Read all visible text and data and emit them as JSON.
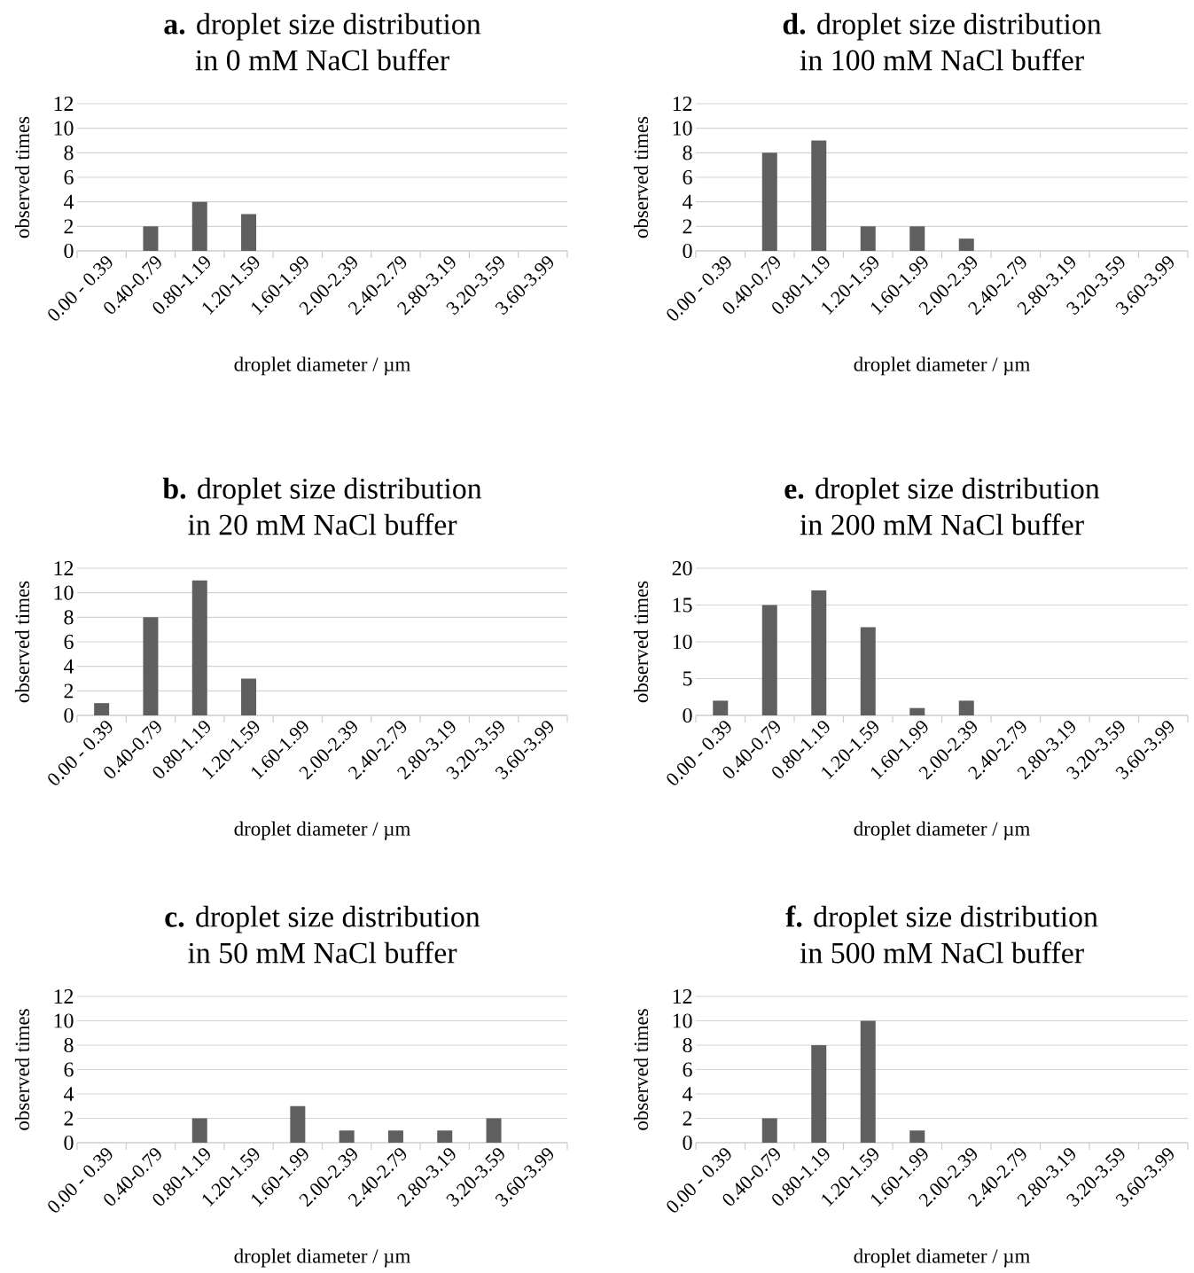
{
  "chart_data": [
    {
      "type": "bar",
      "title": "**a.** droplet size distribution",
      "subtitle": "in 0 mM NaCl buffer",
      "xlabel": "droplet diameter / µm",
      "ylabel": "observed times",
      "categories": [
        "0.00 - 0.39",
        "0.40-0.79",
        "0.80-1.19",
        "1.20-1.59",
        "1.60-1.99",
        "2.00-2.39",
        "2.40-2.79",
        "2.80-3.19",
        "3.20-3.59",
        "3.60-3.99"
      ],
      "values": [
        0,
        2,
        4,
        3,
        0,
        0,
        0,
        0,
        0,
        0
      ],
      "color": "#5f5f5f",
      "ylim": [
        0,
        12
      ],
      "yticks": [
        0,
        2,
        4,
        6,
        8,
        10,
        12
      ],
      "grid": "y"
    },
    {
      "type": "bar",
      "title": "**d.** droplet size distribution",
      "subtitle": "in 100 mM NaCl buffer",
      "xlabel": "droplet diameter / µm",
      "ylabel": "observed times",
      "categories": [
        "0.00 - 0.39",
        "0.40-0.79",
        "0.80-1.19",
        "1.20-1.59",
        "1.60-1.99",
        "2.00-2.39",
        "2.40-2.79",
        "2.80-3.19",
        "3.20-3.59",
        "3.60-3.99"
      ],
      "values": [
        0,
        8,
        9,
        2,
        2,
        1,
        0,
        0,
        0,
        0
      ],
      "color": "#5f5f5f",
      "ylim": [
        0,
        12
      ],
      "yticks": [
        0,
        2,
        4,
        6,
        8,
        10,
        12
      ],
      "grid": "y"
    },
    {
      "type": "bar",
      "title": "**b.** droplet size distribution",
      "subtitle": "in 20 mM NaCl buffer",
      "xlabel": "droplet diameter / µm",
      "ylabel": "observed times",
      "categories": [
        "0.00 - 0.39",
        "0.40-0.79",
        "0.80-1.19",
        "1.20-1.59",
        "1.60-1.99",
        "2.00-2.39",
        "2.40-2.79",
        "2.80-3.19",
        "3.20-3.59",
        "3.60-3.99"
      ],
      "values": [
        1,
        8,
        11,
        3,
        0,
        0,
        0,
        0,
        0,
        0
      ],
      "color": "#5f5f5f",
      "ylim": [
        0,
        12
      ],
      "yticks": [
        0,
        2,
        4,
        6,
        8,
        10,
        12
      ],
      "grid": "y"
    },
    {
      "type": "bar",
      "title": "**e.** droplet size distribution",
      "subtitle": "in 200 mM NaCl buffer",
      "xlabel": "droplet diameter / µm",
      "ylabel": "observed times",
      "categories": [
        "0.00 - 0.39",
        "0.40-0.79",
        "0.80-1.19",
        "1.20-1.59",
        "1.60-1.99",
        "2.00-2.39",
        "2.40-2.79",
        "2.80-3.19",
        "3.20-3.59",
        "3.60-3.99"
      ],
      "values": [
        2,
        15,
        17,
        12,
        1,
        2,
        0,
        0,
        0,
        0
      ],
      "color": "#5f5f5f",
      "ylim": [
        0,
        20
      ],
      "yticks": [
        0,
        5,
        10,
        15,
        20
      ],
      "grid": "y"
    },
    {
      "type": "bar",
      "title": "**c.** droplet size distribution",
      "subtitle": "in 50 mM NaCl buffer",
      "xlabel": "droplet diameter / µm",
      "ylabel": "observed times",
      "categories": [
        "0.00 - 0.39",
        "0.40-0.79",
        "0.80-1.19",
        "1.20-1.59",
        "1.60-1.99",
        "2.00-2.39",
        "2.40-2.79",
        "2.80-3.19",
        "3.20-3.59",
        "3.60-3.99"
      ],
      "values": [
        0,
        0,
        2,
        0,
        3,
        1,
        1,
        1,
        2,
        0
      ],
      "color": "#5f5f5f",
      "ylim": [
        0,
        12
      ],
      "yticks": [
        0,
        2,
        4,
        6,
        8,
        10,
        12
      ],
      "grid": "y"
    },
    {
      "type": "bar",
      "title": "**f.** droplet size distribution",
      "subtitle": "in 500 mM NaCl buffer",
      "xlabel": "droplet diameter / µm",
      "ylabel": "observed times",
      "categories": [
        "0.00 - 0.39",
        "0.40-0.79",
        "0.80-1.19",
        "1.20-1.59",
        "1.60-1.99",
        "2.00-2.39",
        "2.40-2.79",
        "2.80-3.19",
        "3.20-3.59",
        "3.60-3.99"
      ],
      "values": [
        0,
        2,
        8,
        10,
        1,
        0,
        0,
        0,
        0,
        0
      ],
      "color": "#5f5f5f",
      "ylim": [
        0,
        12
      ],
      "yticks": [
        0,
        2,
        4,
        6,
        8,
        10,
        12
      ],
      "grid": "y"
    }
  ]
}
